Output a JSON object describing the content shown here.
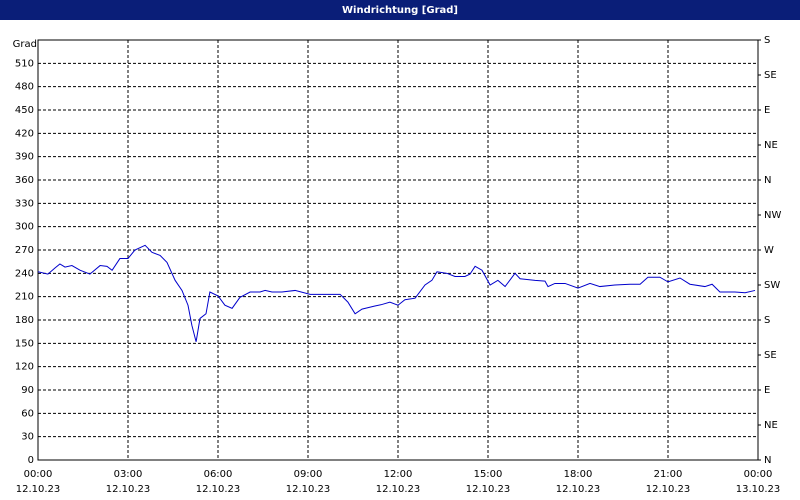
{
  "chart_data": {
    "type": "line",
    "title": "Windrichtung [Grad]",
    "ylabel": "Grad",
    "x": [
      0,
      0.33,
      0.57,
      0.73,
      0.9,
      1.13,
      1.4,
      1.73,
      2.07,
      2.3,
      2.47,
      2.73,
      3,
      3.23,
      3.57,
      3.8,
      4.07,
      4.3,
      4.57,
      4.8,
      5,
      5.13,
      5.27,
      5.4,
      5.6,
      5.73,
      6,
      6.23,
      6.47,
      6.73,
      7.07,
      7.4,
      7.57,
      7.8,
      8.13,
      8.57,
      9.07,
      9.57,
      10.07,
      10.33,
      10.57,
      10.8,
      11.23,
      11.47,
      11.73,
      12,
      12.23,
      12.57,
      12.9,
      13.13,
      13.3,
      13.63,
      13.9,
      14.23,
      14.4,
      14.57,
      14.8,
      15.07,
      15.33,
      15.57,
      15.9,
      16.07,
      16.57,
      16.9,
      17,
      17.23,
      17.57,
      18,
      18.4,
      18.73,
      19.23,
      19.73,
      20.07,
      20.33,
      20.73,
      21,
      21.4,
      21.73,
      22.23,
      22.47,
      22.73,
      23.23,
      23.57,
      23.9
    ],
    "series": [
      {
        "color": "#0000cc",
        "values": [
          242,
          239,
          247,
          252,
          248,
          250,
          244,
          239,
          250,
          249,
          244,
          259,
          259,
          270,
          276,
          267,
          263,
          254,
          231,
          218,
          199,
          173,
          152,
          182,
          188,
          216,
          211,
          199,
          195,
          209,
          216,
          216,
          218,
          216,
          216,
          218,
          213,
          213,
          213,
          203,
          188,
          194,
          198,
          200,
          203,
          199,
          206,
          208,
          225,
          231,
          242,
          240,
          236,
          236,
          239,
          249,
          244,
          225,
          231,
          223,
          240,
          233,
          231,
          230,
          223,
          227,
          227,
          221,
          227,
          223,
          225,
          226,
          226,
          235,
          235,
          229,
          234,
          226,
          223,
          226,
          216,
          216,
          215,
          218
        ]
      }
    ],
    "xlim": [
      0,
      24
    ],
    "xticks": [
      {
        "value": 0,
        "label": "00:00"
      },
      {
        "value": 3,
        "label": "03:00"
      },
      {
        "value": 6,
        "label": "06:00"
      },
      {
        "value": 9,
        "label": "09:00"
      },
      {
        "value": 12,
        "label": "12:00"
      },
      {
        "value": 15,
        "label": "15:00"
      },
      {
        "value": 18,
        "label": "18:00"
      },
      {
        "value": 21,
        "label": "21:00"
      },
      {
        "value": 24,
        "label": "00:00"
      }
    ],
    "xtick_dates": [
      "12.10.23",
      "12.10.23",
      "12.10.23",
      "12.10.23",
      "12.10.23",
      "12.10.23",
      "12.10.23",
      "12.10.23",
      "13.10.23"
    ],
    "ylim": [
      0,
      540
    ],
    "yticks": [
      0,
      30,
      60,
      90,
      120,
      150,
      180,
      210,
      240,
      270,
      300,
      330,
      360,
      390,
      420,
      450,
      480,
      510
    ],
    "y2lim": [
      0,
      540
    ],
    "y2ticks": [
      {
        "value": 0,
        "label": "N"
      },
      {
        "value": 45,
        "label": "NE"
      },
      {
        "value": 90,
        "label": "E"
      },
      {
        "value": 135,
        "label": "SE"
      },
      {
        "value": 180,
        "label": "S"
      },
      {
        "value": 225,
        "label": "SW"
      },
      {
        "value": 270,
        "label": "W"
      },
      {
        "value": 315,
        "label": "NW"
      },
      {
        "value": 360,
        "label": "N"
      },
      {
        "value": 405,
        "label": "NE"
      },
      {
        "value": 450,
        "label": "E"
      },
      {
        "value": 495,
        "label": "SE"
      },
      {
        "value": 540,
        "label": "S"
      }
    ],
    "grid": true
  }
}
